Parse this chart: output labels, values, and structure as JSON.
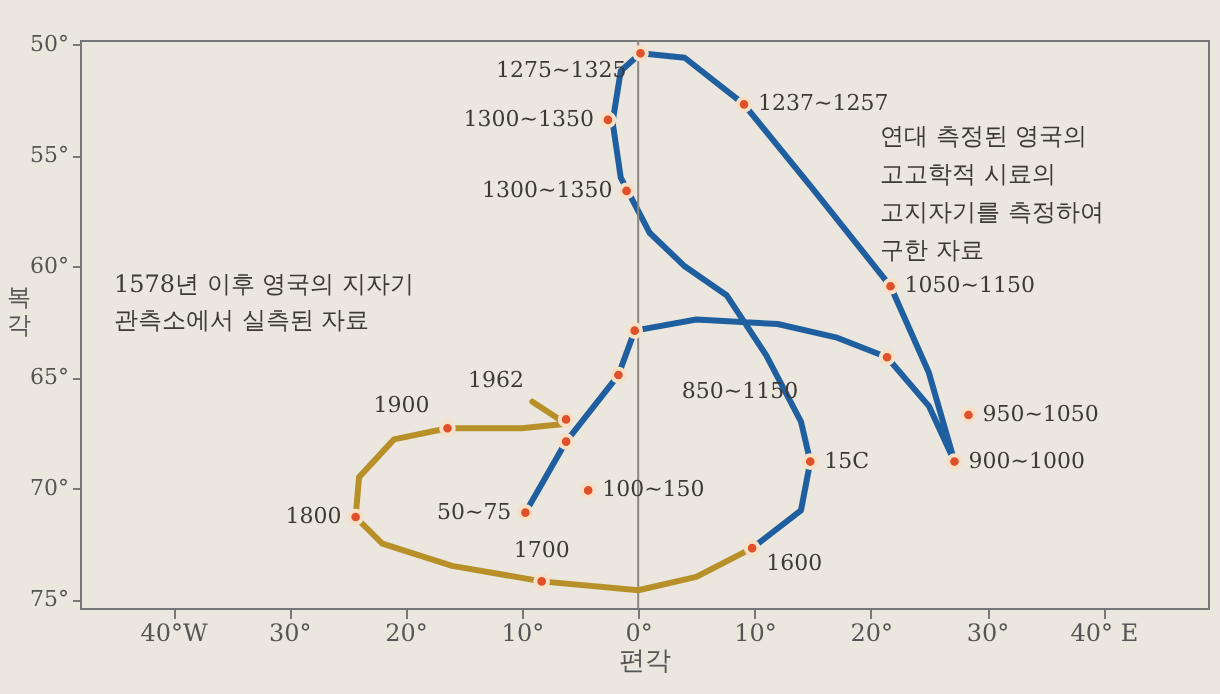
{
  "chart_data": {
    "type": "line",
    "xlabel": "편각",
    "ylabel": "복각",
    "xlim": [
      -48,
      49
    ],
    "ylim": [
      75.4,
      49.8
    ],
    "xticks": [
      {
        "value": -40,
        "label": "40°W"
      },
      {
        "value": -30,
        "label": "30°"
      },
      {
        "value": -20,
        "label": "20°"
      },
      {
        "value": -10,
        "label": "10°"
      },
      {
        "value": 0,
        "label": "0°"
      },
      {
        "value": 10,
        "label": "10°"
      },
      {
        "value": 20,
        "label": "20°"
      },
      {
        "value": 30,
        "label": "30°"
      },
      {
        "value": 40,
        "label": "40° E"
      }
    ],
    "yticks": [
      {
        "value": 50,
        "label": "50°"
      },
      {
        "value": 55,
        "label": "55°"
      },
      {
        "value": 60,
        "label": "60°"
      },
      {
        "value": 65,
        "label": "65°"
      },
      {
        "value": 70,
        "label": "70°"
      },
      {
        "value": 75,
        "label": "75°"
      }
    ],
    "ref_lines": [
      {
        "axis": "x",
        "value": 0,
        "color": "#8c867e"
      }
    ],
    "series": [
      {
        "color": "#1f5fa0",
        "x": [
          -9.7,
          -6.2,
          -1.7,
          -0.3,
          5,
          12,
          17,
          21.4,
          25,
          27.2,
          25,
          21.7,
          15,
          9.1,
          4,
          0.2,
          -1.5,
          -2.2,
          -1.5,
          1,
          4,
          7.6,
          11,
          14,
          14.8,
          14,
          9.8
        ],
        "values": [
          71.1,
          67.9,
          64.9,
          62.9,
          62.4,
          62.6,
          63.2,
          64.1,
          66.3,
          68.8,
          64.8,
          60.9,
          56.5,
          52.7,
          50.6,
          50.4,
          51.2,
          53.5,
          56,
          58.5,
          60,
          61.3,
          64,
          67,
          68.8,
          71,
          72.7
        ]
      },
      {
        "color": "#b8902a",
        "x": [
          9.8,
          5,
          0,
          -8.3,
          -16,
          -22,
          -24.3,
          -24,
          -21,
          -16.4,
          -10,
          -6.2,
          -9.1
        ],
        "values": [
          72.7,
          74,
          74.6,
          74.2,
          73.5,
          72.5,
          71.3,
          69.5,
          67.8,
          67.3,
          67.3,
          67.1,
          66.1
        ]
      },
      {
        "type": "scatter",
        "marker": "circle",
        "color": "#e0502a",
        "x": [
          -9.7,
          -6.2,
          -1.7,
          -0.3,
          -4.3,
          14.8,
          9.8,
          27.2,
          28.4,
          21.4,
          21.7,
          9.1,
          0.2,
          -2.6,
          -1.0,
          -8.3,
          -24.3,
          -16.4,
          -6.2
        ],
        "values": [
          71.1,
          67.9,
          64.9,
          62.9,
          70.1,
          68.8,
          72.7,
          68.8,
          66.7,
          64.1,
          60.9,
          52.7,
          50.4,
          53.4,
          56.6,
          74.2,
          71.3,
          67.3,
          66.9
        ]
      }
    ],
    "annotations": [
      {
        "text": "1275~1325",
        "x": 0.2,
        "y": 50.4
      },
      {
        "text": "1237~1257",
        "x": 9.1,
        "y": 52.7
      },
      {
        "text": "1300~1350",
        "x": -2.6,
        "y": 53.4
      },
      {
        "text": "1300~1350",
        "x": -1.0,
        "y": 56.6
      },
      {
        "text": "1050~1150",
        "x": 21.7,
        "y": 60.9
      },
      {
        "text": "950~1050",
        "x": 28.4,
        "y": 66.7
      },
      {
        "text": "900~1000",
        "x": 27.2,
        "y": 68.8
      },
      {
        "text": "15C",
        "x": 14.8,
        "y": 68.8
      },
      {
        "text": "100~150",
        "x": -4.3,
        "y": 70.1
      },
      {
        "text": "1600",
        "x": 9.8,
        "y": 72.7
      },
      {
        "text": "1700",
        "x": -8.3,
        "y": 74.2
      },
      {
        "text": "1800",
        "x": -24.3,
        "y": 71.3
      },
      {
        "text": "1900",
        "x": -16.4,
        "y": 67.3
      },
      {
        "text": "1962",
        "x": -6.2,
        "y": 66.9
      },
      {
        "text": "50~75",
        "x": -9.7,
        "y": 71.1
      },
      "850~1150",
      "연대 측정된 영국의\n고고학적 시료의\n고지자기를 측정하여\n구한 자료",
      "1578년 이후 영국의 지자기\n관측소에서 실측된 자료"
    ]
  }
}
